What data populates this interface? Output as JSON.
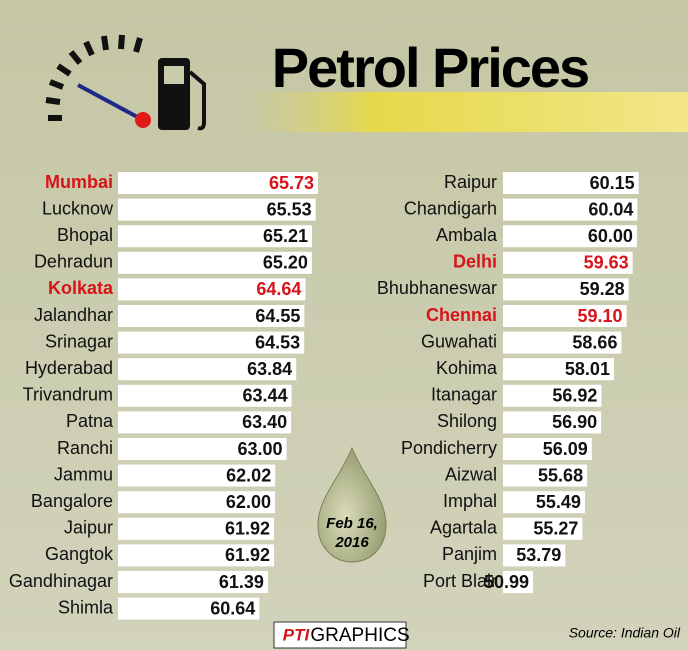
{
  "chart_data": [
    {
      "type": "bar",
      "title": "Petrol Prices",
      "annotation": [
        "Feb 16,",
        "2016"
      ],
      "logo": "PTI",
      "credit": "GRAPHICS",
      "source": "Source: Indian Oil",
      "categories": [
        "Mumbai",
        "Lucknow",
        "Bhopal",
        "Dehradun",
        "Kolkata",
        "Jalandhar",
        "Srinagar",
        "Hyderabad",
        "Trivandrum",
        "Patna",
        "Ranchi",
        "Jammu",
        "Bangalore",
        "Jaipur",
        "Gangtok",
        "Gandhinagar",
        "Shimla"
      ],
      "values": [
        65.73,
        65.53,
        65.21,
        65.2,
        64.64,
        64.55,
        64.53,
        63.84,
        63.44,
        63.4,
        63.0,
        62.02,
        62.0,
        61.92,
        61.92,
        61.39,
        60.64
      ],
      "value_labels": [
        "65.73",
        "65.53",
        "65.21",
        "65.20",
        "64.64",
        "64.55",
        "64.53",
        "63.84",
        "63.44",
        "63.40",
        "63.00",
        "62.02",
        "62.00",
        "61.92",
        "61.92",
        "61.39",
        "60.64"
      ],
      "text_colors": [
        "#d7141a",
        "#111",
        "#111",
        "#111",
        "#d7141a",
        "#111",
        "#111",
        "#111",
        "#111",
        "#111",
        "#111",
        "#111",
        "#111",
        "#111",
        "#111",
        "#111",
        "#111"
      ],
      "color": "#ffffff"
    },
    {
      "type": "bar",
      "categories": [
        "Raipur",
        "Chandigarh",
        "Ambala",
        "Delhi",
        "Bhubhaneswar",
        "Chennai",
        "Guwahati",
        "Kohima",
        "Itanagar",
        "Shilong",
        "Pondicherry",
        "Aizwal",
        "Imphal",
        "Agartala",
        "Panjim",
        "Port Blair"
      ],
      "values": [
        60.15,
        60.04,
        60.0,
        59.63,
        59.28,
        59.1,
        58.66,
        58.01,
        56.92,
        56.9,
        56.09,
        55.68,
        55.49,
        55.27,
        53.79,
        50.99
      ],
      "value_labels": [
        "60.15",
        "60.04",
        "60.00",
        "59.63",
        "59.28",
        "59.10",
        "58.66",
        "58.01",
        "56.92",
        "56.90",
        "56.09",
        "55.68",
        "55.49",
        "55.27",
        "53.79",
        "50.99"
      ],
      "text_colors": [
        "#111",
        "#111",
        "#111",
        "#d7141a",
        "#111",
        "#d7141a",
        "#111",
        "#111",
        "#111",
        "#111",
        "#111",
        "#111",
        "#111",
        "#111",
        "#111",
        "#111"
      ],
      "color": "#ffffff"
    }
  ]
}
